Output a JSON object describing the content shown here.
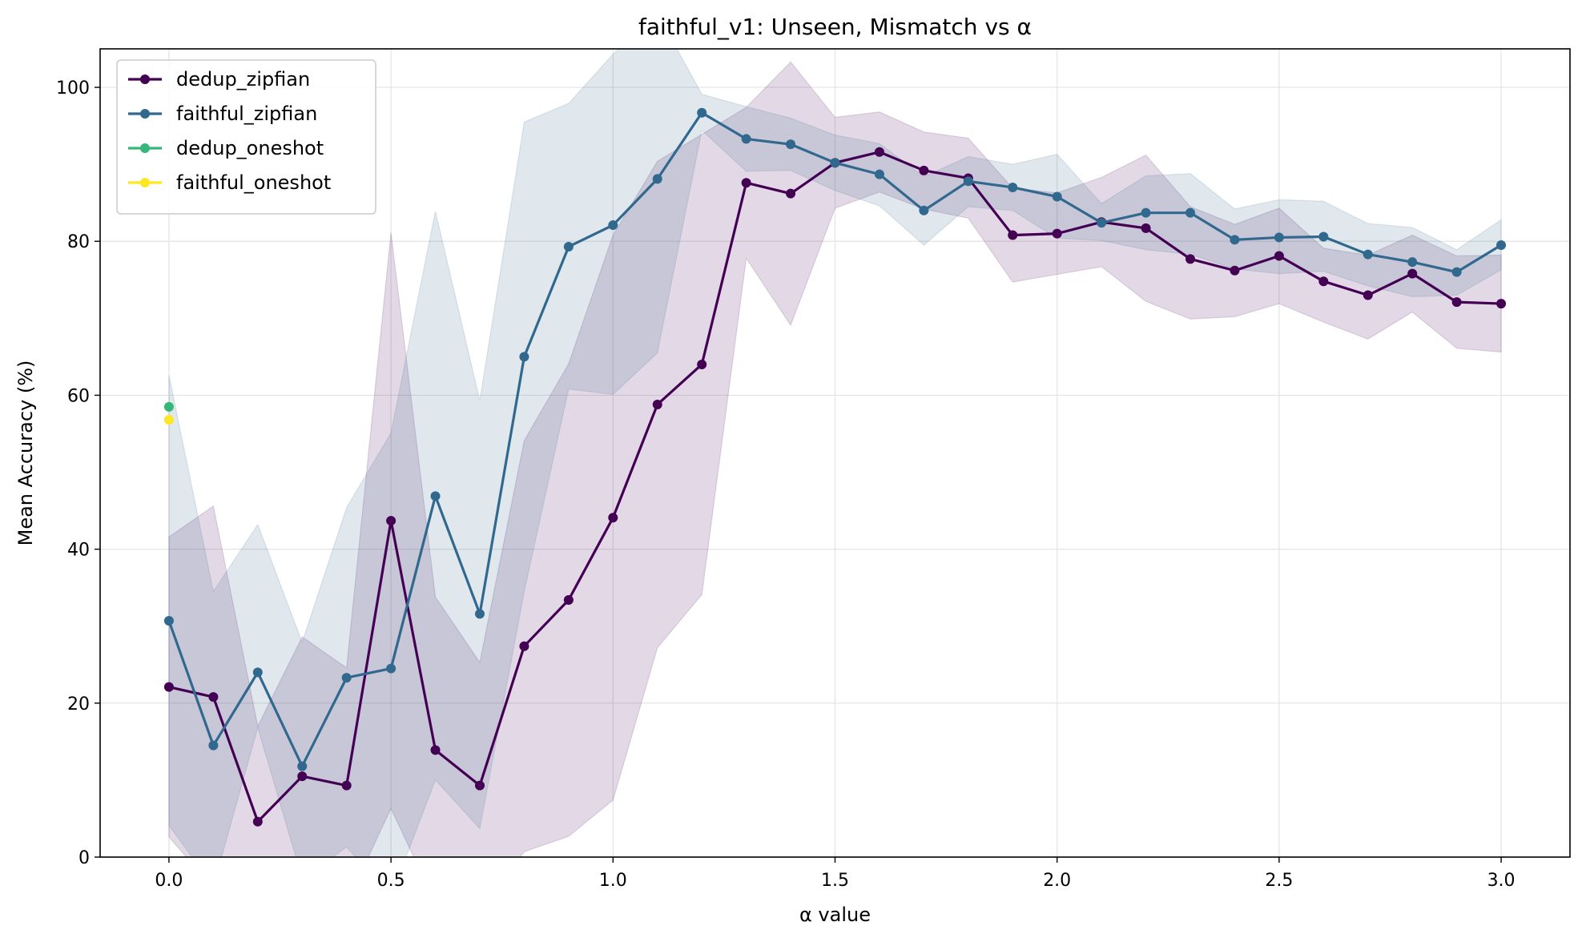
{
  "chart_data": {
    "type": "line",
    "title": "faithful_v1: Unseen, Mismatch vs α",
    "xlabel": "α value",
    "ylabel": "Mean Accuracy (%)",
    "xlim": [
      -0.155,
      3.155
    ],
    "ylim": [
      0,
      105
    ],
    "xticks": [
      0.0,
      0.5,
      1.0,
      1.5,
      2.0,
      2.5,
      3.0
    ],
    "xtick_labels": [
      "0.0",
      "0.5",
      "1.0",
      "1.5",
      "2.0",
      "2.5",
      "3.0"
    ],
    "yticks": [
      0,
      20,
      40,
      60,
      80,
      100
    ],
    "ytick_labels": [
      "0",
      "20",
      "40",
      "60",
      "80",
      "100"
    ],
    "grid": true,
    "legend_position": "top-left",
    "x": [
      0.0,
      0.1,
      0.2,
      0.3,
      0.4,
      0.5,
      0.6,
      0.7,
      0.8,
      0.9,
      1.0,
      1.1,
      1.2,
      1.3,
      1.4,
      1.5,
      1.6,
      1.7,
      1.8,
      1.9,
      2.0,
      2.1,
      2.2,
      2.3,
      2.4,
      2.5,
      2.6,
      2.7,
      2.8,
      2.9,
      3.0
    ],
    "series": [
      {
        "name": "dedup_zipfian",
        "color": "#440154",
        "values": [
          22.1,
          20.8,
          4.6,
          10.5,
          9.3,
          43.7,
          13.9,
          9.3,
          27.4,
          33.4,
          44.1,
          58.8,
          64.0,
          87.6,
          86.2,
          90.2,
          91.6,
          89.2,
          88.2,
          80.8,
          81.0,
          82.5,
          81.7,
          77.7,
          76.2,
          78.1,
          74.8,
          73.0,
          75.8,
          72.1,
          71.9
        ],
        "band_upper": [
          41.6,
          45.6,
          17.0,
          28.6,
          24.6,
          81.1,
          33.8,
          25.3,
          54.1,
          64.1,
          80.8,
          90.4,
          93.9,
          97.4,
          103.3,
          96.1,
          96.8,
          94.2,
          93.4,
          86.9,
          86.3,
          88.3,
          91.2,
          84.5,
          82.2,
          84.3,
          79.1,
          78.2,
          80.8,
          78.1,
          78.2
        ],
        "band_lower": [
          2.6,
          -4.0,
          -7.8,
          -7.6,
          -6.0,
          6.3,
          -6.0,
          -6.7,
          0.7,
          2.7,
          7.4,
          27.2,
          34.1,
          77.8,
          69.1,
          84.3,
          86.4,
          84.2,
          83.0,
          74.7,
          75.7,
          76.7,
          72.2,
          69.9,
          70.2,
          71.9,
          69.5,
          67.3,
          70.8,
          66.1,
          65.6
        ]
      },
      {
        "name": "faithful_zipfian",
        "color": "#31688e",
        "values": [
          30.7,
          14.5,
          24.0,
          11.8,
          23.3,
          24.5,
          46.9,
          31.6,
          65.0,
          79.3,
          82.1,
          88.1,
          96.7,
          93.3,
          92.6,
          90.2,
          88.7,
          84.0,
          87.8,
          87.0,
          85.8,
          82.4,
          83.7,
          83.7,
          80.2,
          80.5,
          80.6,
          78.3,
          77.3,
          76.0,
          79.5
        ],
        "band_upper": [
          62.6,
          34.5,
          43.2,
          27.9,
          45.4,
          55.1,
          83.9,
          59.3,
          95.5,
          97.9,
          104.3,
          109.6,
          99.1,
          97.5,
          96.0,
          93.8,
          92.7,
          88.4,
          91.0,
          90.0,
          91.3,
          84.9,
          88.5,
          88.8,
          84.2,
          85.4,
          85.2,
          82.3,
          81.8,
          78.9,
          82.8
        ],
        "band_lower": [
          4.1,
          -3.8,
          16.8,
          -2.8,
          1.3,
          -5.1,
          10.0,
          3.7,
          34.5,
          60.8,
          60.1,
          65.5,
          94.4,
          89.1,
          89.2,
          86.6,
          84.6,
          79.5,
          84.5,
          84.0,
          80.4,
          80.1,
          78.9,
          78.3,
          76.4,
          75.8,
          76.1,
          74.2,
          72.8,
          73.0,
          76.3
        ]
      },
      {
        "name": "dedup_oneshot",
        "color": "#35b779",
        "x": [
          0.0
        ],
        "values": [
          58.5
        ]
      },
      {
        "name": "faithful_oneshot",
        "color": "#fde725",
        "x": [
          0.0
        ],
        "values": [
          56.8
        ]
      }
    ]
  }
}
